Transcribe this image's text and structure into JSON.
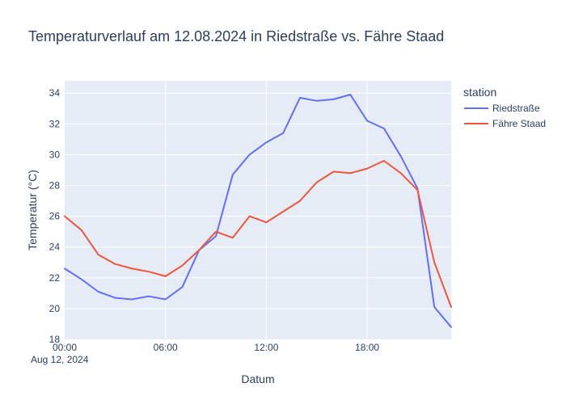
{
  "chart_data": {
    "type": "line",
    "title": "Temperaturverlauf am 12.08.2024 in Riedstraße vs. Fähre Staad",
    "xlabel": "Datum",
    "ylabel": "Temperatur (°C)",
    "x_unit": "hour of day, 12.08.2024",
    "xlim": [
      0,
      23
    ],
    "ylim": [
      18,
      34.8
    ],
    "x_ticks": [
      {
        "value": 0,
        "label": "00:00"
      },
      {
        "value": 6,
        "label": "06:00"
      },
      {
        "value": 12,
        "label": "12:00"
      },
      {
        "value": 18,
        "label": "18:00"
      }
    ],
    "x_date_label": "Aug 12, 2024",
    "y_ticks": [
      18,
      20,
      22,
      24,
      26,
      28,
      30,
      32,
      34
    ],
    "grid": true,
    "legend": {
      "title": "station",
      "position": "right"
    },
    "x": [
      0,
      1,
      2,
      3,
      4,
      5,
      6,
      7,
      8,
      9,
      10,
      11,
      12,
      13,
      14,
      15,
      16,
      17,
      18,
      19,
      20,
      21,
      22,
      23
    ],
    "series": [
      {
        "name": "Riedstraße",
        "color": "#636efa",
        "values": [
          22.6,
          21.9,
          21.1,
          20.7,
          20.6,
          20.8,
          20.6,
          21.4,
          23.8,
          24.7,
          28.7,
          30.0,
          30.8,
          31.4,
          33.7,
          33.5,
          33.6,
          33.9,
          32.2,
          31.7,
          29.9,
          27.8,
          20.1,
          18.8
        ]
      },
      {
        "name": "Fähre Staad",
        "color": "#ef553b",
        "values": [
          26.0,
          25.1,
          23.5,
          22.9,
          22.6,
          22.4,
          22.1,
          22.8,
          23.8,
          25.0,
          24.6,
          26.0,
          25.6,
          26.3,
          27.0,
          28.2,
          28.9,
          28.8,
          29.1,
          29.6,
          28.8,
          27.7,
          23.0,
          20.1
        ]
      }
    ]
  }
}
